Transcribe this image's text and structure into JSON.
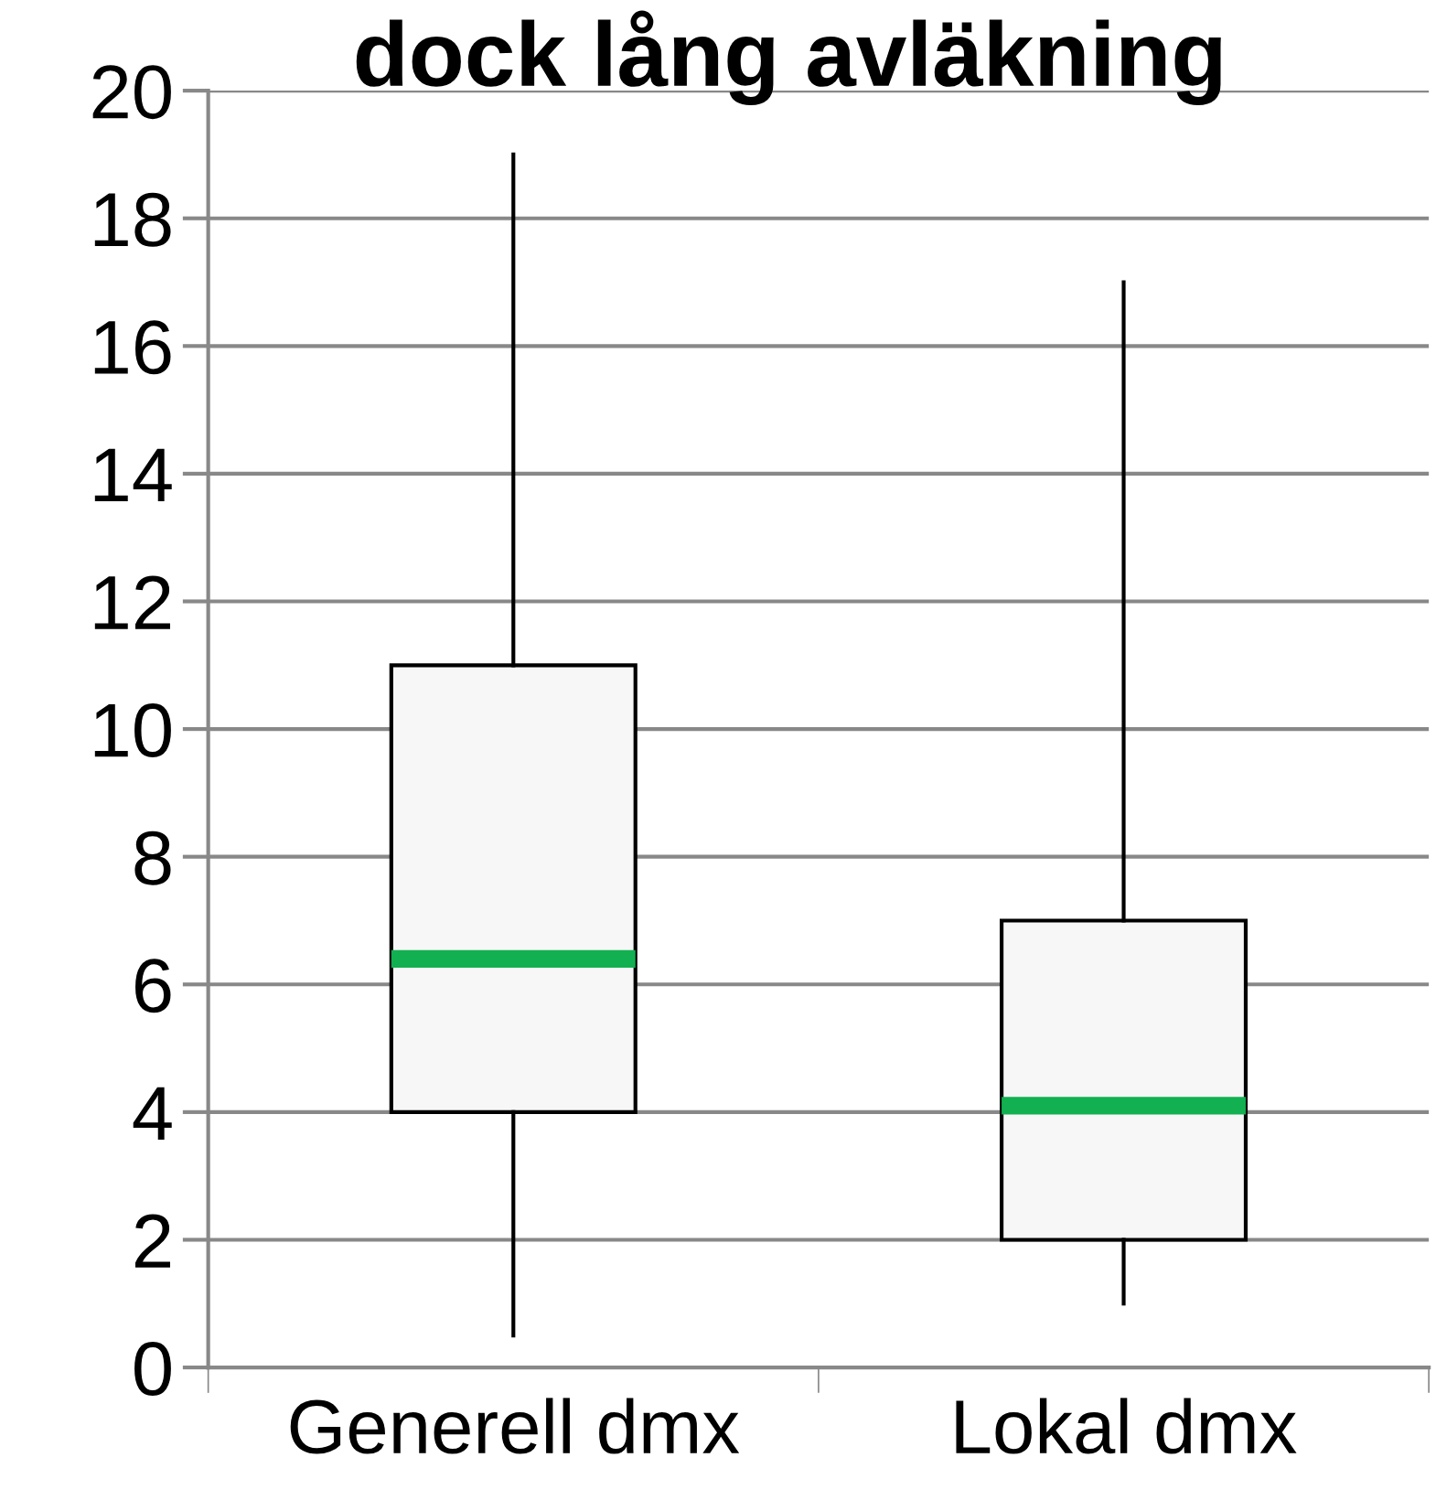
{
  "chart_data": {
    "type": "box",
    "title": "dock lång avläkning",
    "categories": [
      "Generell dmx",
      "Lokal dmx"
    ],
    "series": [
      {
        "color": "#f7f7f7",
        "boxes": [
          {
            "low": 0.5,
            "q1": 4,
            "median": 6.4,
            "q3": 11,
            "high": 19
          },
          {
            "low": 1,
            "q1": 2,
            "median": 4.1,
            "q3": 7,
            "high": 17
          }
        ]
      }
    ],
    "ylim": [
      0,
      20
    ],
    "yticks": [
      0,
      2,
      4,
      6,
      8,
      10,
      12,
      14,
      16,
      18,
      20
    ],
    "grid": "y"
  }
}
